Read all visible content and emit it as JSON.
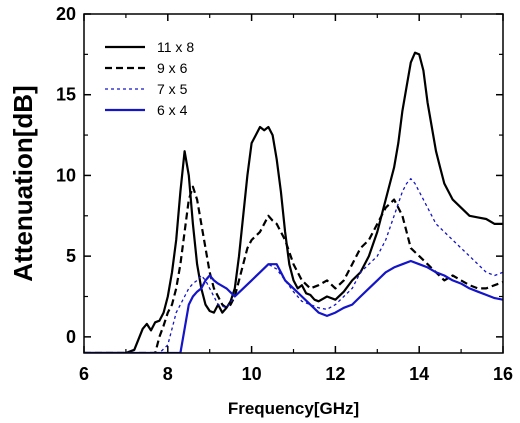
{
  "chart_data": {
    "type": "line",
    "title": "",
    "xlabel": "Frequency[GHz]",
    "ylabel": "Attenuation[dB]",
    "xlim": [
      6,
      16
    ],
    "ylim": [
      -1,
      20
    ],
    "xticks": [
      6,
      8,
      10,
      12,
      14,
      16
    ],
    "yticks": [
      0,
      5,
      10,
      15,
      20
    ],
    "grid": false,
    "legend_position": "top-left",
    "series": [
      {
        "name": "11 x 8",
        "color": "#000000",
        "dash": "solid",
        "x": [
          6,
          7,
          7.2,
          7.4,
          7.5,
          7.6,
          7.7,
          7.8,
          7.9,
          8.0,
          8.1,
          8.2,
          8.3,
          8.4,
          8.5,
          8.6,
          8.7,
          8.8,
          8.9,
          9.0,
          9.1,
          9.2,
          9.3,
          9.4,
          9.5,
          9.6,
          9.7,
          9.8,
          9.9,
          10.0,
          10.1,
          10.2,
          10.3,
          10.4,
          10.5,
          10.6,
          10.7,
          10.8,
          10.9,
          11.0,
          11.1,
          11.2,
          11.3,
          11.4,
          11.5,
          11.6,
          11.8,
          12.0,
          12.2,
          12.4,
          12.6,
          12.8,
          13.0,
          13.2,
          13.4,
          13.5,
          13.6,
          13.7,
          13.8,
          13.9,
          14.0,
          14.1,
          14.2,
          14.3,
          14.4,
          14.5,
          14.6,
          14.8,
          15.0,
          15.2,
          15.4,
          15.6,
          15.8,
          16.0
        ],
        "y": [
          -1,
          -1,
          -0.8,
          0.5,
          0.8,
          0.4,
          0.9,
          1.0,
          1.5,
          2.5,
          4.0,
          6.0,
          9.0,
          11.5,
          10.0,
          7.0,
          4.5,
          3.0,
          2.0,
          1.6,
          1.5,
          2.0,
          1.5,
          1.8,
          2.2,
          3.0,
          5.0,
          7.5,
          10.0,
          12.0,
          12.5,
          13.0,
          12.8,
          13.0,
          12.5,
          11.0,
          9.0,
          6.5,
          4.5,
          3.5,
          3.0,
          3.2,
          2.7,
          2.6,
          2.3,
          2.2,
          2.5,
          2.3,
          2.8,
          3.5,
          4.0,
          5.0,
          6.5,
          8.5,
          10.5,
          12.0,
          14.0,
          15.5,
          17.0,
          17.6,
          17.5,
          16.5,
          14.5,
          13.0,
          11.5,
          10.5,
          9.5,
          8.5,
          8.0,
          7.5,
          7.4,
          7.3,
          7.0,
          7.0
        ]
      },
      {
        "name": "9 x 6",
        "color": "#000000",
        "dash": "dash",
        "x": [
          6,
          7.7,
          7.8,
          7.9,
          8.0,
          8.1,
          8.2,
          8.3,
          8.4,
          8.5,
          8.6,
          8.7,
          8.8,
          8.9,
          9.0,
          9.1,
          9.2,
          9.3,
          9.4,
          9.5,
          9.6,
          9.7,
          9.8,
          9.9,
          10.0,
          10.2,
          10.4,
          10.5,
          10.6,
          10.8,
          11.0,
          11.2,
          11.4,
          11.6,
          11.8,
          12.0,
          12.2,
          12.4,
          12.6,
          12.8,
          13.0,
          13.2,
          13.4,
          13.5,
          13.6,
          13.7,
          13.8,
          14.0,
          14.2,
          14.4,
          14.6,
          14.8,
          15.0,
          15.2,
          15.4,
          15.6,
          15.8,
          16.0
        ],
        "y": [
          -1,
          -1,
          0.0,
          0.7,
          1.5,
          2.0,
          3.0,
          4.5,
          6.5,
          8.5,
          9.3,
          8.5,
          7.0,
          5.5,
          4.0,
          3.0,
          2.5,
          2.0,
          1.8,
          2.0,
          2.5,
          3.5,
          4.5,
          5.5,
          6.0,
          6.5,
          7.5,
          7.2,
          7.0,
          6.0,
          4.5,
          3.5,
          3.0,
          3.2,
          3.5,
          3.0,
          3.5,
          4.5,
          5.5,
          6.0,
          7.0,
          8.0,
          8.5,
          8.0,
          7.5,
          6.5,
          5.5,
          5.0,
          4.5,
          4.0,
          3.5,
          3.8,
          3.5,
          3.2,
          3.0,
          3.0,
          3.2,
          3.4
        ]
      },
      {
        "name": "7 x 5",
        "color": "#1414c8",
        "dash": "dot",
        "x": [
          6,
          7.8,
          8.0,
          8.1,
          8.2,
          8.3,
          8.4,
          8.5,
          8.6,
          8.7,
          8.8,
          8.9,
          9.0,
          9.1,
          9.2,
          9.4,
          9.6,
          9.8,
          10.0,
          10.2,
          10.4,
          10.6,
          10.8,
          11.0,
          11.2,
          11.4,
          11.6,
          11.8,
          12.0,
          12.2,
          12.4,
          12.6,
          12.8,
          13.0,
          13.2,
          13.4,
          13.6,
          13.7,
          13.8,
          13.9,
          14.0,
          14.1,
          14.2,
          14.4,
          14.6,
          14.8,
          15.0,
          15.2,
          15.4,
          15.6,
          15.8,
          16.0
        ],
        "y": [
          -1,
          -1,
          -0.5,
          0.5,
          1.5,
          2.0,
          2.5,
          3.0,
          3.3,
          3.5,
          3.8,
          3.5,
          3.0,
          2.5,
          2.0,
          1.8,
          2.5,
          3.0,
          3.5,
          4.0,
          4.5,
          4.2,
          3.5,
          2.8,
          2.2,
          2.0,
          1.8,
          1.7,
          2.0,
          2.5,
          3.0,
          4.0,
          4.5,
          5.0,
          6.0,
          7.5,
          9.0,
          9.5,
          9.8,
          9.5,
          9.0,
          8.5,
          8.0,
          7.0,
          6.5,
          6.0,
          5.5,
          5.0,
          4.5,
          4.0,
          3.8,
          4.0
        ]
      },
      {
        "name": "6 x 4",
        "color": "#1414c8",
        "dash": "solid",
        "x": [
          6,
          8.3,
          8.4,
          8.5,
          8.6,
          8.7,
          8.8,
          8.9,
          9.0,
          9.1,
          9.2,
          9.4,
          9.6,
          9.8,
          10.0,
          10.2,
          10.4,
          10.6,
          10.7,
          10.8,
          11.0,
          11.2,
          11.4,
          11.6,
          11.8,
          12.0,
          12.2,
          12.4,
          12.6,
          12.8,
          13.0,
          13.2,
          13.4,
          13.6,
          13.8,
          14.0,
          14.2,
          14.4,
          14.6,
          14.8,
          15.0,
          15.2,
          15.4,
          15.6,
          15.8,
          16.0
        ],
        "y": [
          -1,
          -1,
          0.5,
          2.0,
          2.5,
          2.8,
          3.0,
          3.5,
          3.8,
          3.5,
          3.3,
          3.0,
          2.5,
          3.0,
          3.5,
          4.0,
          4.5,
          4.5,
          4.0,
          3.5,
          3.0,
          2.5,
          2.0,
          1.5,
          1.3,
          1.5,
          1.8,
          2.0,
          2.5,
          3.0,
          3.5,
          4.0,
          4.3,
          4.5,
          4.7,
          4.5,
          4.3,
          4.0,
          3.8,
          3.5,
          3.3,
          3.0,
          2.8,
          2.6,
          2.4,
          2.3
        ]
      }
    ]
  }
}
